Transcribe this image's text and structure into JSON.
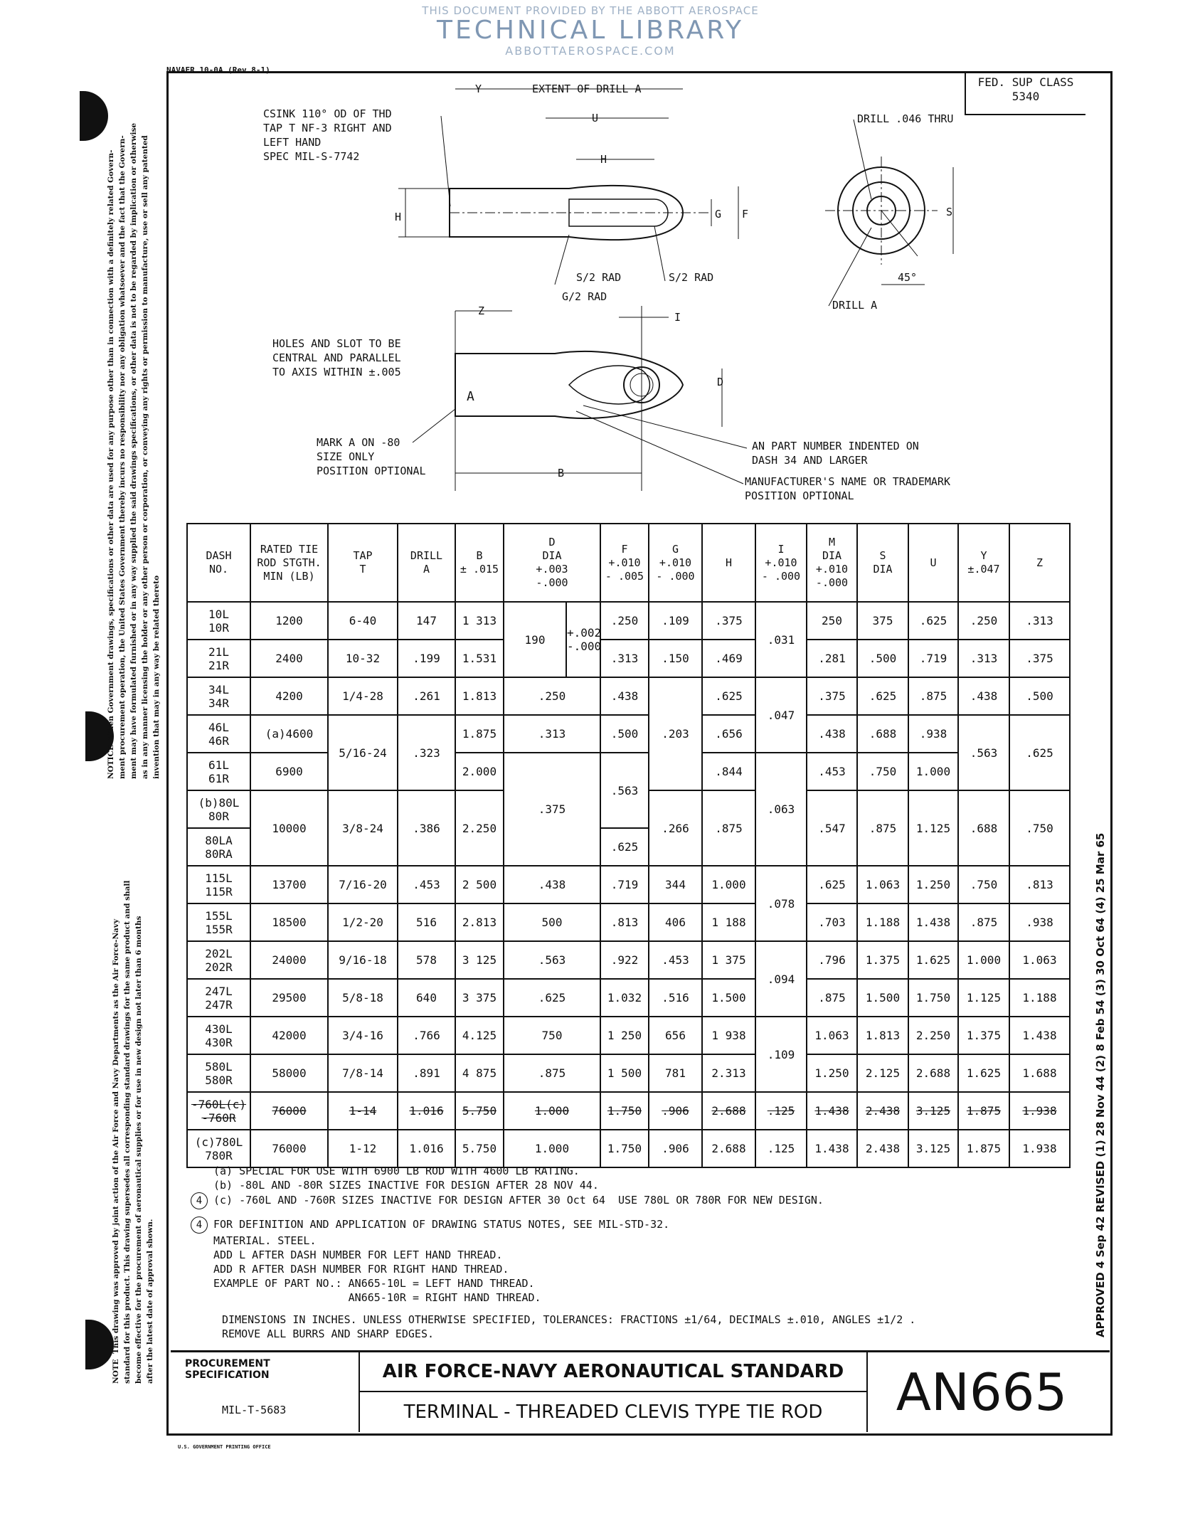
{
  "watermark": {
    "line1": "THIS DOCUMENT PROVIDED BY THE ABBOTT AEROSPACE",
    "line2": "TECHNICAL LIBRARY",
    "line3": "ABBOTTAEROSPACE.COM"
  },
  "header": {
    "navaer": "NAVAER 10-0A (Rev 8-1)",
    "fed_sup_class": "FED. SUP CLASS\n5340"
  },
  "drawing": {
    "csink_note": [
      "CSINK 110° OD OF THD",
      "TAP T NF-3 RIGHT AND",
      "LEFT HAND",
      "SPEC MIL-S-7742"
    ],
    "extent_label": "EXTENT OF DRILL A",
    "dim_y": "Y",
    "dim_u": "U",
    "dim_h": "H",
    "dim_g": "G",
    "dim_f": "F",
    "dim_h_left": "H",
    "s2_rad": "S/2 RAD",
    "g2_rad": "G/2 RAD",
    "s2_rad_right": "S/2 RAD",
    "drill_046": "DRILL .046 THRU",
    "dim_s": "S",
    "angle": "45°",
    "drill_a": "DRILL A",
    "dim_z": "Z",
    "dim_i": "I",
    "dim_d": "D",
    "dim_b": "B",
    "mark_a": "A",
    "holes_note": [
      "HOLES AND SLOT TO BE",
      "CENTRAL AND PARALLEL",
      "TO AXIS WITHIN ±.005"
    ],
    "mark_note": [
      "MARK A ON -80",
      "SIZE ONLY",
      "POSITION OPTIONAL"
    ],
    "part_note": [
      "AN PART NUMBER INDENTED ON",
      "DASH 34 AND LARGER"
    ],
    "mfr_note": [
      "MANUFACTURER'S NAME OR TRADEMARK",
      "POSITION OPTIONAL"
    ]
  },
  "table": {
    "headers": [
      {
        "t": "DASH\nNO."
      },
      {
        "t": "RATED TIE\nROD STGTH.\nMIN (LB)"
      },
      {
        "t": "TAP\nT"
      },
      {
        "t": "DRILL\nA"
      },
      {
        "t": "B\n± .015"
      },
      {
        "t": "D\nDIA\n+.003\n-.000",
        "cs": 2
      },
      {
        "t": "F\n+.010\n- .005"
      },
      {
        "t": "G\n+.010\n- .000"
      },
      {
        "t": "H"
      },
      {
        "t": "I\n+.010\n- .000"
      },
      {
        "t": "M\nDIA\n+.010\n-.000"
      },
      {
        "t": "S\nDIA"
      },
      {
        "t": "U"
      },
      {
        "t": "Y\n±.047"
      },
      {
        "t": "Z"
      }
    ],
    "rows": [
      {
        "cells": [
          {
            "t": "10L\n10R"
          },
          {
            "t": "1200"
          },
          {
            "t": "6-40"
          },
          {
            "t": "147"
          },
          {
            "t": "1 313"
          },
          {
            "t": "190",
            "rs": 2
          },
          {
            "t": "+.002\n-.000",
            "rs": 2
          },
          {
            "t": ".250"
          },
          {
            "t": ".109"
          },
          {
            "t": ".375"
          },
          {
            "t": ".031",
            "rs": 2
          },
          {
            "t": "250"
          },
          {
            "t": "375"
          },
          {
            "t": ".625"
          },
          {
            "t": ".250"
          },
          {
            "t": ".313"
          }
        ]
      },
      {
        "cells": [
          {
            "t": "21L\n21R"
          },
          {
            "t": "2400"
          },
          {
            "t": "10-32"
          },
          {
            "t": ".199"
          },
          {
            "t": "1.531"
          },
          {
            "t": ".313"
          },
          {
            "t": ".150"
          },
          {
            "t": ".469"
          },
          {
            "t": ".281"
          },
          {
            "t": ".500"
          },
          {
            "t": ".719"
          },
          {
            "t": ".313"
          },
          {
            "t": ".375"
          }
        ]
      },
      {
        "cells": [
          {
            "t": "34L\n34R"
          },
          {
            "t": "4200"
          },
          {
            "t": "1/4-28"
          },
          {
            "t": ".261"
          },
          {
            "t": "1.813"
          },
          {
            "t": ".250",
            "cs": 2
          },
          {
            "t": ".438"
          },
          {
            "t": ".203",
            "rs": 3
          },
          {
            "t": ".625"
          },
          {
            "t": ".047",
            "rs": 2
          },
          {
            "t": ".375"
          },
          {
            "t": ".625"
          },
          {
            "t": ".875"
          },
          {
            "t": ".438"
          },
          {
            "t": ".500"
          }
        ]
      },
      {
        "cells": [
          {
            "t": "46L\n46R"
          },
          {
            "t": "(a)4600"
          },
          {
            "t": "5/16-24",
            "rs": 2
          },
          {
            "t": ".323",
            "rs": 2
          },
          {
            "t": "1.875"
          },
          {
            "t": ".313",
            "cs": 2
          },
          {
            "t": ".500"
          },
          {
            "t": ".656"
          },
          {
            "t": ".438"
          },
          {
            "t": ".688"
          },
          {
            "t": ".938"
          },
          {
            "t": ".563",
            "rs": 2
          },
          {
            "t": ".625",
            "rs": 2
          }
        ]
      },
      {
        "cells": [
          {
            "t": "61L\n61R"
          },
          {
            "t": "6900"
          },
          {
            "t": "2.000"
          },
          {
            "t": ".375",
            "cs": 2,
            "rs": 3
          },
          {
            "t": ".563",
            "rs": 2
          },
          {
            "t": ".844"
          },
          {
            "t": ".063",
            "rs": 3
          },
          {
            "t": ".453"
          },
          {
            "t": ".750"
          },
          {
            "t": "1.000"
          }
        ]
      },
      {
        "cells": [
          {
            "t": "(b)80L\n80R"
          },
          {
            "t": "10000",
            "rs": 2
          },
          {
            "t": "3/8-24",
            "rs": 2
          },
          {
            "t": ".386",
            "rs": 2
          },
          {
            "t": "2.250",
            "rs": 2
          },
          {
            "t": ".266",
            "rs": 2
          },
          {
            "t": ".875",
            "rs": 2
          },
          {
            "t": ".547",
            "rs": 2
          },
          {
            "t": ".875",
            "rs": 2
          },
          {
            "t": "1.125",
            "rs": 2
          },
          {
            "t": ".688",
            "rs": 2
          },
          {
            "t": ".750",
            "rs": 2
          }
        ]
      },
      {
        "cells": [
          {
            "t": "80LA\n80RA"
          },
          {
            "t": ".625"
          }
        ]
      },
      {
        "cells": [
          {
            "t": "115L\n115R"
          },
          {
            "t": "13700"
          },
          {
            "t": "7/16-20"
          },
          {
            "t": ".453"
          },
          {
            "t": "2 500"
          },
          {
            "t": ".438",
            "cs": 2
          },
          {
            "t": ".719"
          },
          {
            "t": "344"
          },
          {
            "t": "1.000"
          },
          {
            "t": ".078",
            "rs": 2
          },
          {
            "t": ".625"
          },
          {
            "t": "1.063"
          },
          {
            "t": "1.250"
          },
          {
            "t": ".750"
          },
          {
            "t": ".813"
          }
        ]
      },
      {
        "cells": [
          {
            "t": "155L\n155R"
          },
          {
            "t": "18500"
          },
          {
            "t": "1/2-20"
          },
          {
            "t": "516"
          },
          {
            "t": "2.813"
          },
          {
            "t": "500",
            "cs": 2
          },
          {
            "t": ".813"
          },
          {
            "t": "406"
          },
          {
            "t": "1 188"
          },
          {
            "t": ".703"
          },
          {
            "t": "1.188"
          },
          {
            "t": "1.438"
          },
          {
            "t": ".875"
          },
          {
            "t": ".938"
          }
        ]
      },
      {
        "cells": [
          {
            "t": "202L\n202R"
          },
          {
            "t": "24000"
          },
          {
            "t": "9/16-18"
          },
          {
            "t": "578"
          },
          {
            "t": "3 125"
          },
          {
            "t": ".563",
            "cs": 2
          },
          {
            "t": ".922"
          },
          {
            "t": ".453"
          },
          {
            "t": "1 375"
          },
          {
            "t": ".094",
            "rs": 2
          },
          {
            "t": ".796"
          },
          {
            "t": "1.375"
          },
          {
            "t": "1.625"
          },
          {
            "t": "1.000"
          },
          {
            "t": "1.063"
          }
        ]
      },
      {
        "cells": [
          {
            "t": "247L\n247R"
          },
          {
            "t": "29500"
          },
          {
            "t": "5/8-18"
          },
          {
            "t": "640"
          },
          {
            "t": "3 375"
          },
          {
            "t": ".625",
            "cs": 2
          },
          {
            "t": "1.032"
          },
          {
            "t": ".516"
          },
          {
            "t": "1.500"
          },
          {
            "t": ".875"
          },
          {
            "t": "1.500"
          },
          {
            "t": "1.750"
          },
          {
            "t": "1.125"
          },
          {
            "t": "1.188"
          }
        ]
      },
      {
        "cells": [
          {
            "t": "430L\n430R"
          },
          {
            "t": "42000"
          },
          {
            "t": "3/4-16"
          },
          {
            "t": ".766"
          },
          {
            "t": "4.125"
          },
          {
            "t": "750",
            "cs": 2
          },
          {
            "t": "1 250"
          },
          {
            "t": "656"
          },
          {
            "t": "1 938"
          },
          {
            "t": ".109",
            "rs": 2
          },
          {
            "t": "1.063"
          },
          {
            "t": "1.813"
          },
          {
            "t": "2.250"
          },
          {
            "t": "1.375"
          },
          {
            "t": "1.438"
          }
        ]
      },
      {
        "cells": [
          {
            "t": "580L\n580R"
          },
          {
            "t": "58000"
          },
          {
            "t": "7/8-14"
          },
          {
            "t": ".891"
          },
          {
            "t": "4 875"
          },
          {
            "t": ".875",
            "cs": 2
          },
          {
            "t": "1 500"
          },
          {
            "t": "781"
          },
          {
            "t": "2.313"
          },
          {
            "t": "1.250"
          },
          {
            "t": "2.125"
          },
          {
            "t": "2.688"
          },
          {
            "t": "1.625"
          },
          {
            "t": "1.688"
          }
        ]
      },
      {
        "struck": true,
        "cells": [
          {
            "t": "-760L(c)\n-760R"
          },
          {
            "t": "76000"
          },
          {
            "t": "1-14"
          },
          {
            "t": "1.016"
          },
          {
            "t": "5.750"
          },
          {
            "t": "1.000",
            "cs": 2
          },
          {
            "t": "1.750"
          },
          {
            "t": ".906"
          },
          {
            "t": "2.688"
          },
          {
            "t": ".125"
          },
          {
            "t": "1.438"
          },
          {
            "t": "2.438"
          },
          {
            "t": "3.125"
          },
          {
            "t": "1.875"
          },
          {
            "t": "1.938"
          }
        ]
      },
      {
        "cells": [
          {
            "t": "(c)780L\n780R"
          },
          {
            "t": "76000"
          },
          {
            "t": "1-12"
          },
          {
            "t": "1.016"
          },
          {
            "t": "5.750"
          },
          {
            "t": "1.000",
            "cs": 2
          },
          {
            "t": "1.750"
          },
          {
            "t": ".906"
          },
          {
            "t": "2.688"
          },
          {
            "t": ".125"
          },
          {
            "t": "1.438"
          },
          {
            "t": "2.438"
          },
          {
            "t": "3.125"
          },
          {
            "t": "1.875"
          },
          {
            "t": "1.938"
          }
        ]
      }
    ]
  },
  "notes": {
    "a": "(a) SPECIAL FOR USE WITH 6900 LB ROD WITH 4600 LB RATING.",
    "b": "(b) -80L AND -80R SIZES INACTIVE FOR DESIGN AFTER 28 NOV 44.",
    "c_marker": "4",
    "c": "(c) -760L AND -760R SIZES INACTIVE FOR DESIGN AFTER 30 Oct 64  USE 780L OR 780R FOR NEW DESIGN.",
    "status_marker": "4",
    "status": "FOR DEFINITION AND APPLICATION OF DRAWING STATUS NOTES, SEE MIL-STD-32.",
    "lines": [
      "MATERIAL. STEEL.",
      "ADD L AFTER DASH NUMBER FOR LEFT HAND THREAD.",
      "ADD R AFTER DASH NUMBER FOR RIGHT HAND THREAD.",
      "EXAMPLE OF PART NO.: AN665-10L = LEFT HAND THREAD.",
      "                     AN665-10R = RIGHT HAND THREAD."
    ],
    "tolerances": "DIMENSIONS IN INCHES. UNLESS OTHERWISE SPECIFIED, TOLERANCES: FRACTIONS ±1/64, DECIMALS ±.010, ANGLES ±1/2 .",
    "burrs": "REMOVE ALL BURRS AND SHARP EDGES."
  },
  "title_block": {
    "procurement": "PROCUREMENT\nSPECIFICATION",
    "spec": "MIL-T-5683",
    "standard": "AIR FORCE-NAVY AERONAUTICAL STANDARD",
    "title": "TERMINAL - THREADED CLEVIS TYPE TIE ROD",
    "number": "AN665",
    "gpo": "U.S. GOVERNMENT PRINTING OFFICE"
  },
  "side": {
    "notice": "NOTICE  When Government drawings, specifications or other data are used for any purpose other than in connection with a definitely related Govern-\nment procurement operation, the United States Government thereby incurs no responsibility nor any obligation whatsoever and the fact that the Govern-\nment may have formulated furnished or in any way supplied the said drawings specifications, or other data is not to be regarded by implication or otherwise\nas in any manner licensing the holder or any other person or corporation, or conveying any rights or permission to manufacture, use or sell any patented\ninvention that may in any way be related thereto",
    "note": "NOTE  This drawing was approved by joint action of the Air Force and Navy Departments as the Air Force-Navy\nstandard for this product. This drawing supersedes all corresponding standard drawings for the same product and shall\nbecome effective for the procurement of aeronautical supplies or for use in new design not later than 6 months\nafter the latest date of approval shown.",
    "revisions": "APPROVED  4 Sep 42   REVISED  (1) 28 Nov 44  (2) 8 Feb 54  (3) 30 Oct 64  (4) 25 Mar 65"
  }
}
